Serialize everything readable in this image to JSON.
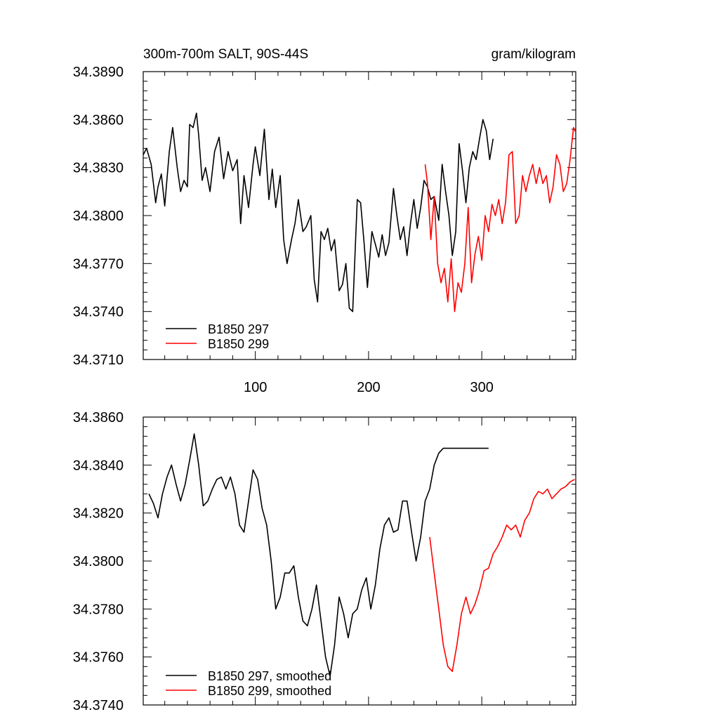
{
  "chart_data": [
    {
      "type": "line",
      "title": "300m-700m SALT, 90S-44S",
      "units": "gram/kilogram",
      "xlim": [
        1,
        383
      ],
      "ylim": [
        34.371,
        34.389
      ],
      "x_ticks": [
        100,
        200,
        300
      ],
      "y_ticks": [
        34.371,
        34.374,
        34.377,
        34.38,
        34.383,
        34.386,
        34.389
      ],
      "y_tick_labels": [
        "34.3710",
        "34.3740",
        "34.3770",
        "34.3800",
        "34.3830",
        "34.3860",
        "34.3890"
      ],
      "legend_position": "bottom-left",
      "series": [
        {
          "name": "B1850 297",
          "color": "#000000",
          "x": [
            1,
            4,
            8,
            12,
            14,
            17,
            20,
            24,
            27,
            31,
            34,
            37,
            40,
            42,
            45,
            48,
            50,
            53,
            56,
            60,
            64,
            68,
            72,
            76,
            80,
            84,
            87,
            90,
            94,
            98,
            100,
            104,
            108,
            112,
            115,
            118,
            122,
            125,
            128,
            132,
            135,
            138,
            142,
            145,
            149,
            152,
            155,
            158,
            161,
            164,
            167,
            170,
            174,
            177,
            180,
            183,
            186,
            190,
            193,
            196,
            199,
            203,
            206,
            209,
            212,
            215,
            218,
            222,
            225,
            228,
            231,
            234,
            237,
            240,
            243,
            246,
            249,
            252,
            255,
            258,
            262,
            265,
            268,
            271,
            274,
            277,
            280,
            283,
            286,
            289,
            292,
            295,
            298,
            301,
            304,
            307,
            310
          ],
          "y": [
            34.3838,
            34.3842,
            34.3832,
            34.3808,
            34.3818,
            34.3826,
            34.3806,
            34.384,
            34.3855,
            34.383,
            34.3815,
            34.3822,
            34.3818,
            34.3857,
            34.3855,
            34.3864,
            34.385,
            34.3822,
            34.383,
            34.3815,
            34.384,
            34.3849,
            34.3823,
            34.384,
            34.3828,
            34.3835,
            34.3795,
            34.3825,
            34.3805,
            34.3832,
            34.3843,
            34.3825,
            34.3854,
            34.381,
            34.3829,
            34.3805,
            34.3825,
            34.3785,
            34.377,
            34.3785,
            34.3795,
            34.381,
            34.379,
            34.3793,
            34.38,
            34.376,
            34.3746,
            34.379,
            34.3785,
            34.3792,
            34.3778,
            34.3785,
            34.3753,
            34.3757,
            34.377,
            34.3742,
            34.374,
            34.381,
            34.3808,
            34.3783,
            34.3755,
            34.379,
            34.3782,
            34.3774,
            34.3788,
            34.3775,
            34.3783,
            34.3817,
            34.38,
            34.3785,
            34.3793,
            34.3775,
            34.3795,
            34.381,
            34.3792,
            34.3805,
            34.3822,
            34.3818,
            34.381,
            34.3812,
            34.3797,
            34.3832,
            34.3815,
            34.38,
            34.3775,
            34.379,
            34.3845,
            34.3828,
            34.3808,
            34.383,
            34.384,
            34.3835,
            34.3848,
            34.386,
            34.3853,
            34.3835,
            34.3848
          ]
        },
        {
          "name": "B1850 299",
          "color": "#ff0000",
          "x": [
            250,
            252,
            255,
            258,
            261,
            264,
            267,
            270,
            273,
            276,
            279,
            282,
            285,
            288,
            291,
            294,
            297,
            300,
            303,
            306,
            309,
            312,
            315,
            318,
            321,
            324,
            327,
            330,
            333,
            336,
            339,
            342,
            345,
            348,
            351,
            354,
            357,
            360,
            363,
            366,
            369,
            372,
            375,
            378,
            381,
            383
          ],
          "y": [
            34.3832,
            34.382,
            34.3785,
            34.3812,
            34.377,
            34.3758,
            34.3767,
            34.3746,
            34.3773,
            34.374,
            34.3758,
            34.3752,
            34.377,
            34.3805,
            34.3758,
            34.3776,
            34.3787,
            34.3772,
            34.38,
            34.379,
            34.3807,
            34.38,
            34.381,
            34.3795,
            34.3808,
            34.3838,
            34.384,
            34.3795,
            34.38,
            34.3825,
            34.3815,
            34.3825,
            34.3832,
            34.382,
            34.383,
            34.382,
            34.3825,
            34.3808,
            34.3818,
            34.3838,
            34.3832,
            34.3815,
            34.382,
            34.3835,
            34.3855,
            34.3852
          ]
        }
      ]
    },
    {
      "type": "line",
      "xlim": [
        1,
        383
      ],
      "ylim": [
        34.374,
        34.386
      ],
      "y_ticks": [
        34.374,
        34.376,
        34.378,
        34.38,
        34.382,
        34.384,
        34.386
      ],
      "y_tick_labels": [
        "34.3740",
        "34.3760",
        "34.3780",
        "34.3800",
        "34.3820",
        "34.3840",
        "34.3860"
      ],
      "legend_position": "bottom-left",
      "series": [
        {
          "name": "B1850 297, smoothed",
          "color": "#000000",
          "x": [
            6,
            10,
            14,
            18,
            22,
            26,
            30,
            34,
            38,
            42,
            46,
            50,
            54,
            58,
            62,
            66,
            70,
            74,
            78,
            82,
            86,
            90,
            94,
            98,
            102,
            106,
            110,
            114,
            118,
            122,
            126,
            130,
            134,
            138,
            142,
            146,
            150,
            154,
            158,
            162,
            166,
            170,
            174,
            178,
            182,
            186,
            190,
            194,
            198,
            202,
            206,
            210,
            214,
            218,
            222,
            226,
            230,
            234,
            238,
            242,
            246,
            250,
            254,
            258,
            262,
            266,
            270,
            274,
            278,
            282,
            286,
            290,
            294,
            298,
            302,
            306
          ],
          "y": [
            34.3828,
            34.3824,
            34.3818,
            34.3828,
            34.3835,
            34.384,
            34.3832,
            34.3825,
            34.3832,
            34.3842,
            34.3853,
            34.384,
            34.3823,
            34.3825,
            34.383,
            34.3834,
            34.3835,
            34.383,
            34.3835,
            34.3828,
            34.3815,
            34.3812,
            34.3825,
            34.3838,
            34.3834,
            34.3822,
            34.3815,
            34.38,
            34.378,
            34.3785,
            34.3795,
            34.3795,
            34.3798,
            34.3785,
            34.3775,
            34.3773,
            34.378,
            34.379,
            34.3775,
            34.376,
            34.3752,
            34.3765,
            34.3785,
            34.3778,
            34.3768,
            34.3778,
            34.378,
            34.3788,
            34.3793,
            34.378,
            34.379,
            34.3805,
            34.3815,
            34.3818,
            34.3812,
            34.3813,
            34.3825,
            34.3825,
            34.3812,
            34.38,
            34.381,
            34.3825,
            34.383,
            34.384,
            34.3845,
            34.3847,
            34.3847,
            34.3847,
            34.3847,
            34.3847,
            34.3847,
            34.3847,
            34.3847,
            34.3847,
            34.3847,
            34.3847
          ]
        },
        {
          "name": "B1850 299, smoothed",
          "color": "#ff0000",
          "x": [
            254,
            258,
            262,
            266,
            270,
            274,
            278,
            282,
            286,
            290,
            294,
            298,
            302,
            306,
            310,
            314,
            318,
            322,
            326,
            330,
            334,
            338,
            342,
            346,
            350,
            354,
            358,
            362,
            366,
            370,
            374,
            378,
            382
          ],
          "y": [
            34.381,
            34.3795,
            34.378,
            34.3765,
            34.3756,
            34.3754,
            34.3765,
            34.3778,
            34.3785,
            34.3778,
            34.3782,
            34.3788,
            34.3796,
            34.3797,
            34.3803,
            34.3806,
            34.381,
            34.3815,
            34.3813,
            34.3815,
            34.381,
            34.3817,
            34.382,
            34.3826,
            34.3829,
            34.3828,
            34.383,
            34.3826,
            34.3828,
            34.383,
            34.3831,
            34.3833,
            34.3834
          ]
        }
      ]
    }
  ]
}
